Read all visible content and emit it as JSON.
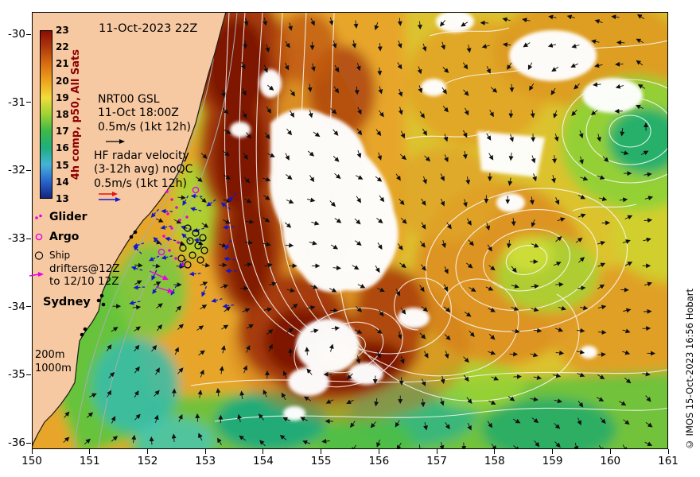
{
  "figure": {
    "credit": "© IMOS 15-Oct-2023 16:56 Hobart"
  },
  "header": {
    "datetime_label": "11-Oct-2023 22Z"
  },
  "colorbar": {
    "label": "4h comp, p50, All Sats",
    "ticks": [
      "23",
      "22",
      "21",
      "20",
      "19",
      "18",
      "17",
      "16",
      "15",
      "14",
      "13"
    ],
    "gradient": [
      "#8a0d05",
      "#b03a0c",
      "#d96f12",
      "#eda41e",
      "#f2dc3a",
      "#9ed334",
      "#3cb84a",
      "#1fae7e",
      "#45b4d8",
      "#2a66cc",
      "#15257f"
    ]
  },
  "legend": {
    "nrt_lines": [
      "NRT00 GSL",
      "11-Oct 18:00Z",
      "0.5m/s (1kt 12h)"
    ],
    "hf_lines": [
      "HF radar velocity",
      "(3-12h avg) noQC",
      "0.5m/s (1kt 12h)"
    ],
    "glider": "Glider",
    "argo": "Argo",
    "ship": "Ship",
    "drifters_line1": "drifters@12Z",
    "drifters_line2": "to 12/10 12Z",
    "city": "Sydney",
    "isobaths": [
      "200m",
      "1000m"
    ]
  },
  "axes": {
    "x_ticks": [
      "150",
      "151",
      "152",
      "153",
      "154",
      "155",
      "156",
      "157",
      "158",
      "159",
      "160",
      "161"
    ],
    "y_ticks": [
      "-30",
      "-31",
      "-32",
      "-33",
      "-34",
      "-35",
      "-36"
    ]
  },
  "colors": {
    "land": "#f7c9a2",
    "marker_magenta": "#e800e8",
    "radar_red": "#e81010",
    "radar_blue": "#1616cc",
    "vector_black": "#111111",
    "colorbar_title": "#8b0000"
  }
}
